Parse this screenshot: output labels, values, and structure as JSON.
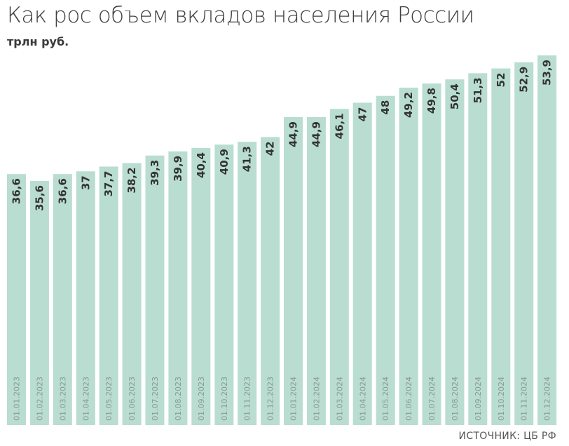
{
  "header": {
    "title": "Как рос объем вкладов населения России",
    "subtitle": "трлн руб."
  },
  "footer": {
    "source": "ИСТОЧНИК: ЦБ РФ"
  },
  "colors": {
    "bar": "#b9ddd1",
    "text": "#333333"
  },
  "chart_data": {
    "type": "bar",
    "title": "Как рос объем вкладов населения России",
    "ylabel": "трлн руб.",
    "categories": [
      "01.01.2023",
      "01.02.2023",
      "01.03.2023",
      "01.04.2023",
      "01.05.2023",
      "01.06.2023",
      "01.07.2023",
      "01.08.2023",
      "01.09.2023",
      "01.10.2023",
      "01.11.2023",
      "01.12.2023",
      "01.01.2024",
      "01.02.2024",
      "01.03.2024",
      "01.04.2024",
      "01.05.2024",
      "01.06.2024",
      "01.07.2024",
      "01.08.2024",
      "01.09.2024",
      "01.10.2024",
      "01.11.2024",
      "01.12.2024"
    ],
    "values": [
      36.6,
      35.6,
      36.6,
      37,
      37.7,
      38.2,
      39.3,
      39.9,
      40.4,
      40.9,
      41.3,
      42,
      44.9,
      44.9,
      46.1,
      47,
      48,
      49.2,
      49.8,
      50.4,
      51.3,
      52,
      52.9,
      53.9
    ],
    "labels": [
      "36,6",
      "35,6",
      "36,6",
      "37",
      "37,7",
      "38,2",
      "39,3",
      "39,9",
      "40,4",
      "40,9",
      "41,3",
      "42",
      "44,9",
      "44,9",
      "46,1",
      "47",
      "48",
      "49,2",
      "49,8",
      "50,4",
      "51,3",
      "52",
      "52,9",
      "53,9"
    ],
    "ylim": [
      0,
      53.9
    ],
    "grid": false,
    "legend": "none",
    "source": "ИСТОЧНИК: ЦБ РФ"
  }
}
